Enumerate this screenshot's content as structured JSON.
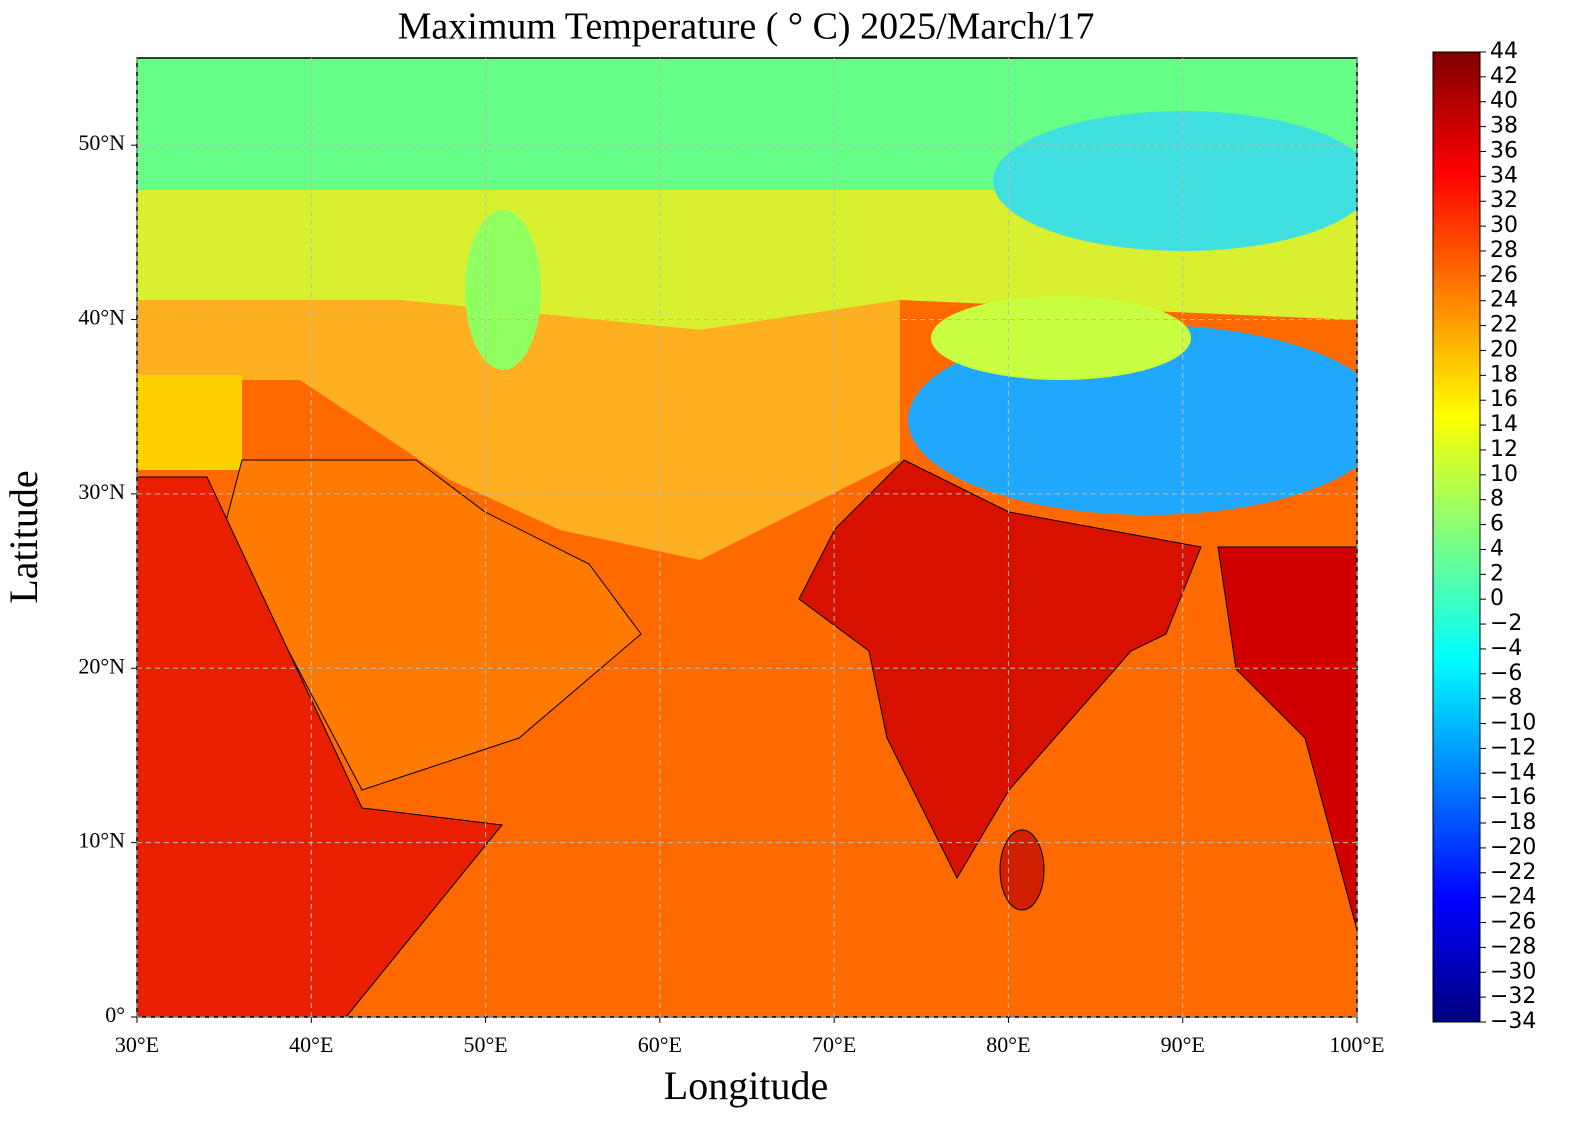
{
  "chart_data": {
    "type": "map",
    "title": "Maximum Temperature ( ° C)  2025/March/17",
    "x_label": "Longitude",
    "y_label": "Latitude",
    "xlim": [
      30,
      100
    ],
    "ylim": [
      0,
      55
    ],
    "xticks": [
      {
        "value": 30,
        "label": "30°E"
      },
      {
        "value": 40,
        "label": "40°E"
      },
      {
        "value": 50,
        "label": "50°E"
      },
      {
        "value": 60,
        "label": "60°E"
      },
      {
        "value": 70,
        "label": "70°E"
      },
      {
        "value": 80,
        "label": "80°E"
      },
      {
        "value": 90,
        "label": "90°E"
      },
      {
        "value": 100,
        "label": "100°E"
      }
    ],
    "yticks": [
      {
        "value": 0,
        "label": "0°"
      },
      {
        "value": 10,
        "label": "10°N"
      },
      {
        "value": 20,
        "label": "20°N"
      },
      {
        "value": 30,
        "label": "30°N"
      },
      {
        "value": 40,
        "label": "40°N"
      },
      {
        "value": 50,
        "label": "50°N"
      }
    ],
    "grid": true,
    "colormap": "jet",
    "colorbar": {
      "lim": [
        -34,
        44
      ],
      "ticks": [
        44,
        42,
        40,
        38,
        36,
        34,
        32,
        30,
        28,
        26,
        24,
        22,
        20,
        18,
        16,
        14,
        12,
        10,
        8,
        6,
        4,
        2,
        0,
        {
          "value": -2,
          "label": "−2"
        },
        {
          "value": -4,
          "label": "−4"
        },
        {
          "value": -6,
          "label": "−6"
        },
        {
          "value": -8,
          "label": "−8"
        },
        {
          "value": -10,
          "label": "−10"
        },
        {
          "value": -12,
          "label": "−12"
        },
        {
          "value": -14,
          "label": "−14"
        },
        {
          "value": -16,
          "label": "−16"
        },
        {
          "value": -18,
          "label": "−18"
        },
        {
          "value": -20,
          "label": "−20"
        },
        {
          "value": -22,
          "label": "−22"
        },
        {
          "value": -24,
          "label": "−24"
        },
        {
          "value": -26,
          "label": "−26"
        },
        {
          "value": -28,
          "label": "−28"
        },
        {
          "value": -30,
          "label": "−30"
        },
        {
          "value": -32,
          "label": "−32"
        },
        {
          "value": -34,
          "label": "−34"
        }
      ]
    }
  }
}
